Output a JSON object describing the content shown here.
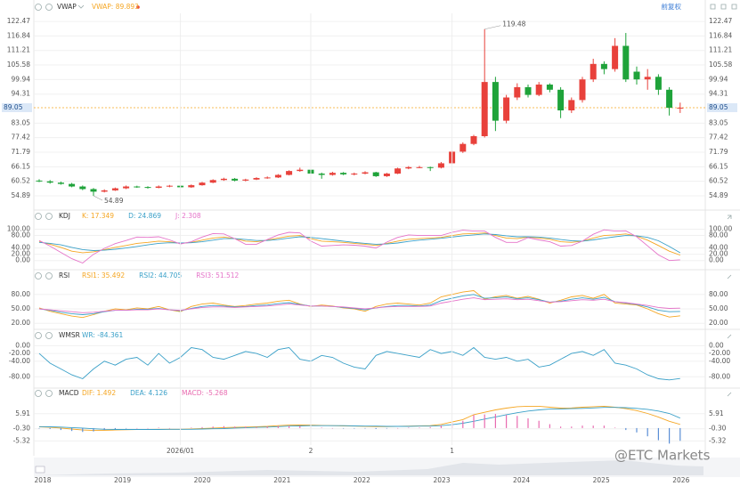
{
  "header": {
    "adjust_label": "前复权",
    "watermark": "@ETC Markets"
  },
  "chart_data": [
    {
      "type": "candlestick",
      "title": "VWAP",
      "legend": [
        {
          "text": "VWAP: 89.893",
          "color": "#f5a623"
        }
      ],
      "up_color": "#e8413b",
      "down_color": "#1fa33a",
      "grid": true,
      "ylim": [
        50.75,
        125.6
      ],
      "yticks": [
        122.47,
        116.84,
        111.21,
        105.58,
        99.94,
        94.31,
        83.05,
        77.42,
        71.79,
        66.15,
        60.52,
        54.89
      ],
      "last_price": 89.05,
      "last_price_color": "#f5a623",
      "high_label": 119.48,
      "low_label": 54.89,
      "candles": [
        [
          60.8,
          61.3,
          60.2,
          60.5
        ],
        [
          60.5,
          61,
          59.6,
          60
        ],
        [
          60,
          60.4,
          59.2,
          59.5
        ],
        [
          59.5,
          59.9,
          58.2,
          58.5
        ],
        [
          58.5,
          58.9,
          57.1,
          57.5
        ],
        [
          57.5,
          57.9,
          54.89,
          56.5
        ],
        [
          56.5,
          57.4,
          56.2,
          57
        ],
        [
          57,
          58.1,
          56.8,
          57.8
        ],
        [
          57.8,
          58.9,
          57.5,
          58.5
        ],
        [
          58.5,
          58.8,
          58,
          58.3
        ],
        [
          58.3,
          58.6,
          57.7,
          58
        ],
        [
          58,
          58.9,
          57.8,
          58.5
        ],
        [
          58.5,
          59.1,
          58.2,
          58.8
        ],
        [
          58.8,
          59,
          57.9,
          58.2
        ],
        [
          58.2,
          59.3,
          58,
          59
        ],
        [
          59,
          60.3,
          58.8,
          60
        ],
        [
          60,
          61.3,
          59.8,
          61
        ],
        [
          61,
          61.9,
          60.7,
          61.5
        ],
        [
          61.5,
          61.8,
          60.5,
          60.8
        ],
        [
          60.8,
          61.5,
          60.5,
          61.2
        ],
        [
          61.2,
          62.1,
          61,
          61.8
        ],
        [
          61.8,
          62.4,
          61.5,
          62
        ],
        [
          62,
          63.3,
          61.8,
          63
        ],
        [
          63,
          64.8,
          62.8,
          64.5
        ],
        [
          64.5,
          65.8,
          64.2,
          65
        ],
        [
          65,
          65.3,
          63.2,
          63.5
        ],
        [
          63.5,
          63.9,
          61.5,
          63
        ],
        [
          63,
          64.2,
          62.7,
          63.8
        ],
        [
          63.8,
          64.1,
          62.9,
          63.2
        ],
        [
          63.2,
          63.9,
          62.8,
          63.5
        ],
        [
          63.5,
          64.4,
          63.2,
          64
        ],
        [
          64,
          64.2,
          62.2,
          62.5
        ],
        [
          62.5,
          63.8,
          62.2,
          63.5
        ],
        [
          63.5,
          65.8,
          63.3,
          65.5
        ],
        [
          65.5,
          66.4,
          65.2,
          66
        ],
        [
          66,
          66.5,
          65.6,
          66
        ],
        [
          66,
          66.2,
          64.5,
          65.8
        ],
        [
          65.8,
          68,
          65.5,
          67.5
        ],
        [
          67.5,
          72.5,
          67.2,
          72
        ],
        [
          72,
          75.6,
          71.5,
          75
        ],
        [
          75,
          78.5,
          74.5,
          78
        ],
        [
          78,
          119.48,
          77.5,
          99
        ],
        [
          99,
          101,
          80,
          84
        ],
        [
          84,
          94,
          83,
          93
        ],
        [
          93,
          98.5,
          92,
          97
        ],
        [
          97,
          98,
          93,
          94
        ],
        [
          94,
          99,
          93.5,
          98
        ],
        [
          98,
          98.5,
          95,
          96
        ],
        [
          96,
          97,
          85,
          88
        ],
        [
          88,
          93,
          87,
          92
        ],
        [
          92,
          101,
          91,
          100
        ],
        [
          100,
          108,
          99,
          106
        ],
        [
          106,
          107,
          102,
          104
        ],
        [
          104,
          116,
          103,
          113
        ],
        [
          113,
          118,
          99,
          100
        ],
        [
          103,
          105,
          98,
          100
        ],
        [
          100,
          104,
          96,
          101
        ],
        [
          101,
          102,
          94,
          96
        ],
        [
          96,
          97,
          86,
          89
        ],
        [
          89,
          91,
          87,
          89.05
        ]
      ]
    },
    {
      "type": "line",
      "title": "KDJ",
      "grid": true,
      "ylim": [
        -15,
        110
      ],
      "yticks": [
        {
          "value": 100,
          "label": "100.00"
        },
        {
          "value": 80,
          "label": "80.00"
        },
        {
          "value": 40,
          "label": "40.00"
        },
        {
          "value": 20,
          "label": "20.00"
        },
        {
          "value": 0,
          "label": "0.00"
        }
      ],
      "series": [
        {
          "legend": "K: 17.349",
          "color": "#f5a623",
          "values": [
            60,
            52,
            42,
            30,
            25,
            28,
            35,
            42,
            48,
            55,
            58,
            62,
            60,
            55,
            58,
            65,
            72,
            75,
            70,
            62,
            60,
            65,
            72,
            78,
            80,
            70,
            62,
            60,
            58,
            55,
            52,
            48,
            55,
            62,
            68,
            70,
            72,
            74,
            80,
            85,
            86,
            88,
            80,
            72,
            70,
            75,
            72,
            68,
            60,
            58,
            62,
            72,
            80,
            82,
            85,
            78,
            65,
            48,
            30,
            17.349
          ]
        },
        {
          "legend": "D: 24.869",
          "color": "#3aa0c8",
          "values": [
            58,
            55,
            50,
            42,
            35,
            32,
            33,
            36,
            40,
            45,
            50,
            55,
            57,
            56,
            57,
            60,
            65,
            70,
            70,
            67,
            64,
            64,
            67,
            72,
            76,
            74,
            70,
            66,
            62,
            58,
            55,
            52,
            53,
            56,
            61,
            65,
            68,
            71,
            75,
            79,
            82,
            85,
            83,
            79,
            76,
            76,
            75,
            72,
            67,
            63,
            62,
            66,
            71,
            76,
            80,
            79,
            74,
            63,
            45,
            24.869
          ]
        },
        {
          "legend": "J: 2.308",
          "color": "#e573c9",
          "values": [
            64,
            46,
            26,
            6,
            -8,
            20,
            39,
            54,
            64,
            75,
            74,
            76,
            66,
            53,
            60,
            75,
            86,
            85,
            70,
            52,
            52,
            67,
            82,
            90,
            88,
            62,
            46,
            48,
            50,
            49,
            46,
            40,
            59,
            74,
            82,
            80,
            80,
            80,
            90,
            97,
            94,
            94,
            74,
            58,
            58,
            73,
            66,
            60,
            46,
            48,
            62,
            84,
            98,
            94,
            95,
            76,
            47,
            18,
            0,
            2.308
          ]
        }
      ]
    },
    {
      "type": "line",
      "title": "RSI",
      "grid": true,
      "ylim": [
        0,
        100
      ],
      "yticks": [
        {
          "value": 80,
          "label": "80.00"
        },
        {
          "value": 50,
          "label": "50.00"
        },
        {
          "value": 20,
          "label": "20.00"
        }
      ],
      "series": [
        {
          "legend": "RSI1: 35.492",
          "color": "#f5a623",
          "values": [
            52,
            45,
            40,
            35,
            32,
            38,
            45,
            50,
            48,
            52,
            50,
            55,
            48,
            44,
            55,
            60,
            62,
            58,
            55,
            57,
            60,
            62,
            66,
            68,
            60,
            55,
            58,
            56,
            52,
            50,
            45,
            55,
            60,
            62,
            60,
            58,
            62,
            75,
            80,
            85,
            88,
            70,
            75,
            78,
            72,
            76,
            70,
            62,
            68,
            75,
            78,
            72,
            80,
            62,
            60,
            58,
            50,
            40,
            33,
            35.492
          ]
        },
        {
          "legend": "RSI2: 44.705",
          "color": "#3aa0c8",
          "values": [
            50,
            47,
            43,
            40,
            38,
            40,
            44,
            47,
            47,
            49,
            49,
            51,
            48,
            46,
            51,
            55,
            57,
            56,
            54,
            55,
            57,
            58,
            61,
            63,
            59,
            56,
            56,
            55,
            53,
            51,
            48,
            52,
            55,
            57,
            57,
            56,
            58,
            67,
            72,
            77,
            80,
            72,
            73,
            75,
            71,
            73,
            69,
            64,
            66,
            70,
            73,
            70,
            74,
            65,
            62,
            59,
            54,
            47,
            44,
            44.705
          ]
        },
        {
          "legend": "RSI3: 51.512",
          "color": "#e573c9",
          "values": [
            50,
            48,
            46,
            44,
            42,
            43,
            45,
            47,
            47,
            48,
            48,
            50,
            48,
            47,
            50,
            53,
            54,
            54,
            53,
            54,
            55,
            56,
            58,
            60,
            58,
            56,
            56,
            55,
            54,
            52,
            50,
            52,
            54,
            55,
            55,
            55,
            56,
            62,
            66,
            70,
            73,
            69,
            70,
            71,
            69,
            70,
            67,
            64,
            65,
            67,
            69,
            68,
            70,
            65,
            63,
            60,
            57,
            53,
            51,
            51.512
          ]
        }
      ]
    },
    {
      "type": "line",
      "title": "WMSR",
      "grid": true,
      "ylim": [
        -100,
        10
      ],
      "yticks": [
        {
          "value": 0,
          "label": "0.00"
        },
        {
          "value": -20,
          "label": "-20.00"
        },
        {
          "value": -40,
          "label": "-40.00"
        },
        {
          "value": -80,
          "label": "-80.00"
        }
      ],
      "series": [
        {
          "legend": "WR: -84.361",
          "color": "#3aa0c8",
          "values": [
            -20,
            -45,
            -60,
            -75,
            -85,
            -60,
            -40,
            -50,
            -35,
            -30,
            -50,
            -20,
            -45,
            -30,
            -5,
            -10,
            -30,
            -35,
            -25,
            -15,
            -20,
            -30,
            -10,
            -5,
            -35,
            -40,
            -25,
            -30,
            -45,
            -55,
            -60,
            -25,
            -15,
            -20,
            -25,
            -30,
            -10,
            -20,
            -15,
            -25,
            -5,
            -30,
            -35,
            -30,
            -40,
            -35,
            -55,
            -50,
            -35,
            -20,
            -15,
            -25,
            -10,
            -45,
            -50,
            -60,
            -75,
            -85,
            -88,
            -84.361
          ]
        }
      ]
    },
    {
      "type": "line",
      "title": "MACD",
      "grid": true,
      "ylim": [
        -7,
        9.5
      ],
      "yticks": [
        5.91,
        {
          "value": -0.3,
          "label": "-0.30"
        },
        -5.32
      ],
      "categories": [
        null,
        null,
        null,
        null,
        null,
        null,
        null,
        null,
        null,
        null,
        null,
        null,
        null,
        "2026/01",
        null,
        null,
        null,
        null,
        null,
        null,
        null,
        null,
        null,
        null,
        null,
        "2",
        null,
        null,
        null,
        null,
        null,
        null,
        null,
        null,
        null,
        null,
        null,
        null,
        "1",
        null,
        null,
        null,
        null,
        null,
        null,
        null,
        null,
        null,
        null,
        null,
        null,
        null,
        null,
        null,
        null,
        null,
        null,
        null,
        null,
        null
      ],
      "series": [
        {
          "legend": "DIF: 1.492",
          "color": "#f5a623",
          "values": [
            0.5,
            0.3,
            0,
            -0.4,
            -0.8,
            -1,
            -0.9,
            -0.8,
            -0.7,
            -0.6,
            -0.6,
            -0.5,
            -0.5,
            -0.5,
            -0.4,
            -0.2,
            0,
            0.2,
            0.3,
            0.4,
            0.5,
            0.7,
            1,
            1.2,
            1.3,
            1.2,
            1.1,
            1,
            0.9,
            0.8,
            0.7,
            0.6,
            0.6,
            0.7,
            0.8,
            0.9,
            1,
            1.5,
            2.5,
            3.5,
            5.5,
            6.5,
            7.5,
            8.2,
            8.8,
            9,
            9,
            8.6,
            8.2,
            8.3,
            8.6,
            8.8,
            9,
            8.6,
            8,
            7.2,
            6,
            4.5,
            2.8,
            1.492
          ]
        },
        {
          "legend": "DEA: 4.126",
          "color": "#3aa0c8",
          "values": [
            0.6,
            0.5,
            0.4,
            0.2,
            0,
            -0.3,
            -0.5,
            -0.6,
            -0.6,
            -0.6,
            -0.6,
            -0.6,
            -0.5,
            -0.5,
            -0.5,
            -0.4,
            -0.3,
            -0.2,
            0,
            0.1,
            0.3,
            0.4,
            0.6,
            0.8,
            0.9,
            1,
            1,
            1,
            1,
            0.9,
            0.8,
            0.8,
            0.7,
            0.7,
            0.7,
            0.8,
            0.8,
            1,
            1.4,
            2,
            2.8,
            3.7,
            4.6,
            5.5,
            6.3,
            7,
            7.5,
            7.8,
            7.9,
            8,
            8.1,
            8.3,
            8.5,
            8.5,
            8.4,
            8.1,
            7.7,
            7,
            6,
            4.126
          ]
        },
        {
          "legend": "MACD: -5.268",
          "color": "#e86bb0",
          "negative_color": "#5b8fd6",
          "kind": "bar",
          "values": [
            -0.2,
            -0.4,
            -0.8,
            -1.2,
            -1.6,
            -1.4,
            -0.8,
            -0.4,
            -0.2,
            0,
            0,
            0.2,
            0,
            0,
            0.2,
            0.4,
            0.6,
            0.8,
            0.6,
            0.6,
            0.4,
            0.6,
            0.8,
            0.8,
            0.8,
            0.4,
            0.2,
            0,
            -0.2,
            -0.2,
            -0.2,
            -0.4,
            -0.2,
            0,
            0.2,
            0.2,
            0.4,
            1,
            2.2,
            3,
            5.4,
            5.6,
            5.8,
            5.4,
            5,
            4,
            3,
            1.6,
            0.6,
            0.6,
            1,
            1,
            1,
            0.2,
            -0.8,
            -1.8,
            -3.4,
            -5,
            -6.4,
            -5.268
          ]
        }
      ]
    }
  ],
  "navigator": {
    "years": [
      "2018",
      "2019",
      "2020",
      "2021",
      "2022",
      "2023",
      "2024",
      "2025",
      "2026"
    ]
  }
}
